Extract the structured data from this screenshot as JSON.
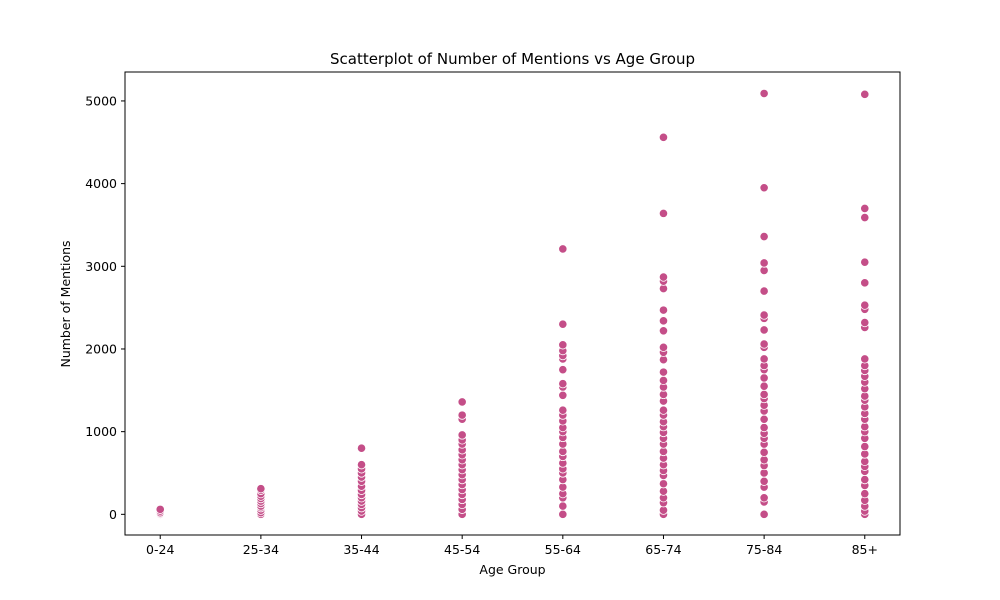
{
  "chart_data": {
    "type": "scatter",
    "title": "Scatterplot of Number of Mentions vs Age Group",
    "xlabel": "Age Group",
    "ylabel": "Number of Mentions",
    "categories": [
      "0-24",
      "25-34",
      "35-44",
      "45-54",
      "55-64",
      "65-74",
      "75-84",
      "85+"
    ],
    "ylim": [
      -250,
      5350
    ],
    "yticks": [
      0,
      1000,
      2000,
      3000,
      4000,
      5000
    ],
    "grid": false,
    "legend": "none",
    "marker_color": "#c44e88",
    "marker_edge_color": "#ffffff",
    "series": [
      {
        "points": [
          {
            "x": "0-24",
            "y": 0
          },
          {
            "x": "0-24",
            "y": 10
          },
          {
            "x": "0-24",
            "y": 20
          },
          {
            "x": "0-24",
            "y": 40
          },
          {
            "x": "0-24",
            "y": 60
          },
          {
            "x": "25-34",
            "y": 0
          },
          {
            "x": "25-34",
            "y": 20
          },
          {
            "x": "25-34",
            "y": 50
          },
          {
            "x": "25-34",
            "y": 80
          },
          {
            "x": "25-34",
            "y": 100
          },
          {
            "x": "25-34",
            "y": 130
          },
          {
            "x": "25-34",
            "y": 160
          },
          {
            "x": "25-34",
            "y": 190
          },
          {
            "x": "25-34",
            "y": 220
          },
          {
            "x": "25-34",
            "y": 250
          },
          {
            "x": "25-34",
            "y": 290
          },
          {
            "x": "25-34",
            "y": 310
          },
          {
            "x": "35-44",
            "y": 0
          },
          {
            "x": "35-44",
            "y": 40
          },
          {
            "x": "35-44",
            "y": 80
          },
          {
            "x": "35-44",
            "y": 120
          },
          {
            "x": "35-44",
            "y": 160
          },
          {
            "x": "35-44",
            "y": 200
          },
          {
            "x": "35-44",
            "y": 240
          },
          {
            "x": "35-44",
            "y": 290
          },
          {
            "x": "35-44",
            "y": 340
          },
          {
            "x": "35-44",
            "y": 400
          },
          {
            "x": "35-44",
            "y": 450
          },
          {
            "x": "35-44",
            "y": 500
          },
          {
            "x": "35-44",
            "y": 550
          },
          {
            "x": "35-44",
            "y": 600
          },
          {
            "x": "35-44",
            "y": 800
          },
          {
            "x": "45-54",
            "y": 0
          },
          {
            "x": "45-54",
            "y": 60
          },
          {
            "x": "45-54",
            "y": 120
          },
          {
            "x": "45-54",
            "y": 180
          },
          {
            "x": "45-54",
            "y": 240
          },
          {
            "x": "45-54",
            "y": 300
          },
          {
            "x": "45-54",
            "y": 360
          },
          {
            "x": "45-54",
            "y": 420
          },
          {
            "x": "45-54",
            "y": 480
          },
          {
            "x": "45-54",
            "y": 540
          },
          {
            "x": "45-54",
            "y": 600
          },
          {
            "x": "45-54",
            "y": 660
          },
          {
            "x": "45-54",
            "y": 720
          },
          {
            "x": "45-54",
            "y": 780
          },
          {
            "x": "45-54",
            "y": 850
          },
          {
            "x": "45-54",
            "y": 900
          },
          {
            "x": "45-54",
            "y": 960
          },
          {
            "x": "45-54",
            "y": 1150
          },
          {
            "x": "45-54",
            "y": 1200
          },
          {
            "x": "45-54",
            "y": 1360
          },
          {
            "x": "55-64",
            "y": 0
          },
          {
            "x": "55-64",
            "y": 100
          },
          {
            "x": "55-64",
            "y": 200
          },
          {
            "x": "55-64",
            "y": 250
          },
          {
            "x": "55-64",
            "y": 330
          },
          {
            "x": "55-64",
            "y": 420
          },
          {
            "x": "55-64",
            "y": 500
          },
          {
            "x": "55-64",
            "y": 550
          },
          {
            "x": "55-64",
            "y": 620
          },
          {
            "x": "55-64",
            "y": 700
          },
          {
            "x": "55-64",
            "y": 760
          },
          {
            "x": "55-64",
            "y": 850
          },
          {
            "x": "55-64",
            "y": 930
          },
          {
            "x": "55-64",
            "y": 1000
          },
          {
            "x": "55-64",
            "y": 1050
          },
          {
            "x": "55-64",
            "y": 1130
          },
          {
            "x": "55-64",
            "y": 1200
          },
          {
            "x": "55-64",
            "y": 1260
          },
          {
            "x": "55-64",
            "y": 1440
          },
          {
            "x": "55-64",
            "y": 1540
          },
          {
            "x": "55-64",
            "y": 1580
          },
          {
            "x": "55-64",
            "y": 1750
          },
          {
            "x": "55-64",
            "y": 1880
          },
          {
            "x": "55-64",
            "y": 1920
          },
          {
            "x": "55-64",
            "y": 1980
          },
          {
            "x": "55-64",
            "y": 2050
          },
          {
            "x": "55-64",
            "y": 2300
          },
          {
            "x": "55-64",
            "y": 3210
          },
          {
            "x": "65-74",
            "y": 0
          },
          {
            "x": "65-74",
            "y": 50
          },
          {
            "x": "65-74",
            "y": 140
          },
          {
            "x": "65-74",
            "y": 200
          },
          {
            "x": "65-74",
            "y": 280
          },
          {
            "x": "65-74",
            "y": 370
          },
          {
            "x": "65-74",
            "y": 470
          },
          {
            "x": "65-74",
            "y": 530
          },
          {
            "x": "65-74",
            "y": 600
          },
          {
            "x": "65-74",
            "y": 680
          },
          {
            "x": "65-74",
            "y": 760
          },
          {
            "x": "65-74",
            "y": 850
          },
          {
            "x": "65-74",
            "y": 920
          },
          {
            "x": "65-74",
            "y": 990
          },
          {
            "x": "65-74",
            "y": 1060
          },
          {
            "x": "65-74",
            "y": 1120
          },
          {
            "x": "65-74",
            "y": 1200
          },
          {
            "x": "65-74",
            "y": 1260
          },
          {
            "x": "65-74",
            "y": 1370
          },
          {
            "x": "65-74",
            "y": 1450
          },
          {
            "x": "65-74",
            "y": 1540
          },
          {
            "x": "65-74",
            "y": 1620
          },
          {
            "x": "65-74",
            "y": 1720
          },
          {
            "x": "65-74",
            "y": 1870
          },
          {
            "x": "65-74",
            "y": 1960
          },
          {
            "x": "65-74",
            "y": 2020
          },
          {
            "x": "65-74",
            "y": 2220
          },
          {
            "x": "65-74",
            "y": 2340
          },
          {
            "x": "65-74",
            "y": 2470
          },
          {
            "x": "65-74",
            "y": 2730
          },
          {
            "x": "65-74",
            "y": 2820
          },
          {
            "x": "65-74",
            "y": 2870
          },
          {
            "x": "65-74",
            "y": 3640
          },
          {
            "x": "65-74",
            "y": 4560
          },
          {
            "x": "75-84",
            "y": 0
          },
          {
            "x": "75-84",
            "y": 150
          },
          {
            "x": "75-84",
            "y": 200
          },
          {
            "x": "75-84",
            "y": 330
          },
          {
            "x": "75-84",
            "y": 400
          },
          {
            "x": "75-84",
            "y": 500
          },
          {
            "x": "75-84",
            "y": 590
          },
          {
            "x": "75-84",
            "y": 660
          },
          {
            "x": "75-84",
            "y": 750
          },
          {
            "x": "75-84",
            "y": 850
          },
          {
            "x": "75-84",
            "y": 920
          },
          {
            "x": "75-84",
            "y": 980
          },
          {
            "x": "75-84",
            "y": 1050
          },
          {
            "x": "75-84",
            "y": 1150
          },
          {
            "x": "75-84",
            "y": 1250
          },
          {
            "x": "75-84",
            "y": 1320
          },
          {
            "x": "75-84",
            "y": 1400
          },
          {
            "x": "75-84",
            "y": 1450
          },
          {
            "x": "75-84",
            "y": 1550
          },
          {
            "x": "75-84",
            "y": 1650
          },
          {
            "x": "75-84",
            "y": 1750
          },
          {
            "x": "75-84",
            "y": 1800
          },
          {
            "x": "75-84",
            "y": 1880
          },
          {
            "x": "75-84",
            "y": 2020
          },
          {
            "x": "75-84",
            "y": 2060
          },
          {
            "x": "75-84",
            "y": 2230
          },
          {
            "x": "75-84",
            "y": 2370
          },
          {
            "x": "75-84",
            "y": 2410
          },
          {
            "x": "75-84",
            "y": 2700
          },
          {
            "x": "75-84",
            "y": 2950
          },
          {
            "x": "75-84",
            "y": 3040
          },
          {
            "x": "75-84",
            "y": 3360
          },
          {
            "x": "75-84",
            "y": 3950
          },
          {
            "x": "75-84",
            "y": 5090
          },
          {
            "x": "85+",
            "y": 0
          },
          {
            "x": "85+",
            "y": 40
          },
          {
            "x": "85+",
            "y": 100
          },
          {
            "x": "85+",
            "y": 170
          },
          {
            "x": "85+",
            "y": 250
          },
          {
            "x": "85+",
            "y": 350
          },
          {
            "x": "85+",
            "y": 420
          },
          {
            "x": "85+",
            "y": 520
          },
          {
            "x": "85+",
            "y": 580
          },
          {
            "x": "85+",
            "y": 640
          },
          {
            "x": "85+",
            "y": 730
          },
          {
            "x": "85+",
            "y": 820
          },
          {
            "x": "85+",
            "y": 920
          },
          {
            "x": "85+",
            "y": 1000
          },
          {
            "x": "85+",
            "y": 1060
          },
          {
            "x": "85+",
            "y": 1150
          },
          {
            "x": "85+",
            "y": 1220
          },
          {
            "x": "85+",
            "y": 1300
          },
          {
            "x": "85+",
            "y": 1380
          },
          {
            "x": "85+",
            "y": 1430
          },
          {
            "x": "85+",
            "y": 1520
          },
          {
            "x": "85+",
            "y": 1600
          },
          {
            "x": "85+",
            "y": 1670
          },
          {
            "x": "85+",
            "y": 1740
          },
          {
            "x": "85+",
            "y": 1800
          },
          {
            "x": "85+",
            "y": 1880
          },
          {
            "x": "85+",
            "y": 2260
          },
          {
            "x": "85+",
            "y": 2320
          },
          {
            "x": "85+",
            "y": 2480
          },
          {
            "x": "85+",
            "y": 2530
          },
          {
            "x": "85+",
            "y": 2800
          },
          {
            "x": "85+",
            "y": 3050
          },
          {
            "x": "85+",
            "y": 3590
          },
          {
            "x": "85+",
            "y": 3700
          },
          {
            "x": "85+",
            "y": 5080
          }
        ]
      }
    ]
  }
}
